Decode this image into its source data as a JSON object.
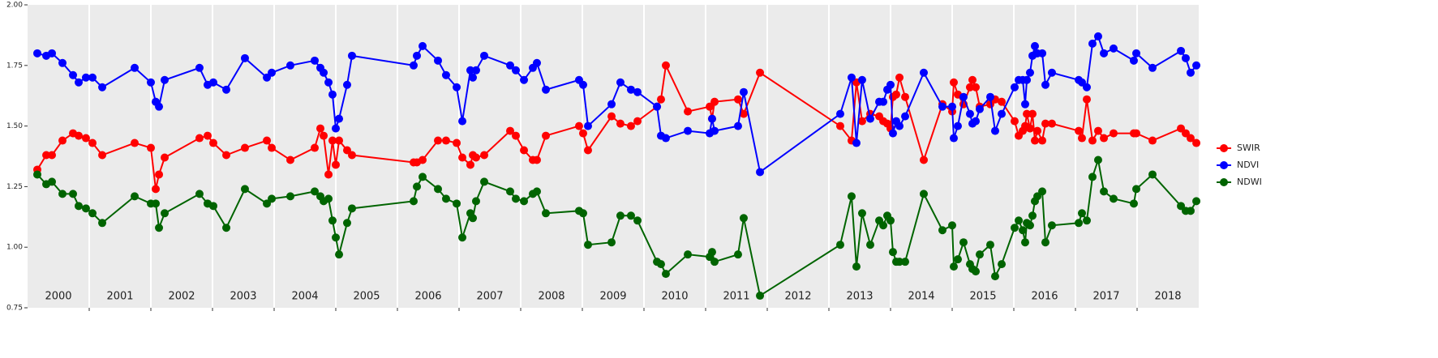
{
  "chart_data": {
    "type": "line",
    "x": [
      2000.158,
      2000.303,
      2000.395,
      2000.566,
      2000.737,
      2000.829,
      2000.947,
      2001.053,
      2001.211,
      2001.737,
      2002.0,
      2002.079,
      2002.132,
      2002.224,
      2002.789,
      2002.921,
      2003.013,
      2003.224,
      2003.526,
      2003.882,
      2003.961,
      2004.263,
      2004.658,
      2004.75,
      2004.803,
      2004.882,
      2004.947,
      2005.0,
      2005.053,
      2005.184,
      2005.263,
      2006.263,
      2006.316,
      2006.408,
      2006.658,
      2006.789,
      2006.961,
      2007.053,
      2007.184,
      2007.224,
      2007.276,
      2007.408,
      2007.829,
      2007.921,
      2008.053,
      2008.197,
      2008.263,
      2008.408,
      2008.947,
      2009.013,
      2009.092,
      2009.474,
      2009.618,
      2009.789,
      2009.895,
      2010.211,
      2010.276,
      2010.355,
      2010.711,
      2011.066,
      2011.105,
      2011.145,
      2011.526,
      2011.618,
      2011.882,
      2013.184,
      2013.368,
      2013.447,
      2013.539,
      2013.671,
      2013.816,
      2013.882,
      2013.947,
      2014.0,
      2014.039,
      2014.092,
      2014.145,
      2014.237,
      2014.539,
      2014.842,
      2015.0,
      2015.026,
      2015.092,
      2015.184,
      2015.289,
      2015.329,
      2015.382,
      2015.447,
      2015.618,
      2015.697,
      2015.803,
      2016.013,
      2016.079,
      2016.145,
      2016.184,
      2016.211,
      2016.263,
      2016.303,
      2016.342,
      2016.382,
      2016.461,
      2016.513,
      2016.618,
      2017.053,
      2017.105,
      2017.184,
      2017.276,
      2017.368,
      2017.461,
      2017.618,
      2017.947,
      2017.987,
      2018.25,
      2018.711,
      2018.789,
      2018.868,
      2018.961
    ],
    "series": [
      {
        "name": "SWIR",
        "color": "#ff0000",
        "values": [
          1.32,
          1.38,
          1.38,
          1.44,
          1.47,
          1.46,
          1.45,
          1.43,
          1.38,
          1.43,
          1.41,
          1.24,
          1.3,
          1.37,
          1.45,
          1.46,
          1.43,
          1.38,
          1.41,
          1.44,
          1.41,
          1.36,
          1.41,
          1.49,
          1.46,
          1.3,
          1.44,
          1.34,
          1.44,
          1.4,
          1.38,
          1.35,
          1.35,
          1.36,
          1.44,
          1.44,
          1.43,
          1.37,
          1.34,
          1.38,
          1.37,
          1.38,
          1.48,
          1.46,
          1.4,
          1.36,
          1.36,
          1.46,
          1.5,
          1.47,
          1.4,
          1.54,
          1.51,
          1.5,
          1.52,
          1.58,
          1.61,
          1.75,
          1.56,
          1.58,
          1.53,
          1.6,
          1.61,
          1.55,
          1.72,
          1.5,
          1.44,
          1.68,
          1.52,
          1.55,
          1.54,
          1.52,
          1.51,
          1.49,
          1.62,
          1.63,
          1.7,
          1.62,
          1.36,
          1.59,
          1.56,
          1.68,
          1.63,
          1.59,
          1.66,
          1.69,
          1.66,
          1.58,
          1.59,
          1.61,
          1.6,
          1.52,
          1.46,
          1.48,
          1.5,
          1.55,
          1.49,
          1.55,
          1.44,
          1.48,
          1.44,
          1.51,
          1.51,
          1.48,
          1.45,
          1.61,
          1.44,
          1.48,
          1.45,
          1.47,
          1.47,
          1.47,
          1.44,
          1.49,
          1.47,
          1.45,
          1.43
        ]
      },
      {
        "name": "NDVI",
        "color": "#0000ff",
        "values": [
          1.8,
          1.79,
          1.8,
          1.76,
          1.71,
          1.68,
          1.7,
          1.7,
          1.66,
          1.74,
          1.68,
          1.6,
          1.58,
          1.69,
          1.74,
          1.67,
          1.68,
          1.65,
          1.78,
          1.7,
          1.72,
          1.75,
          1.77,
          1.74,
          1.72,
          1.68,
          1.63,
          1.49,
          1.53,
          1.67,
          1.79,
          1.75,
          1.79,
          1.83,
          1.77,
          1.71,
          1.66,
          1.52,
          1.73,
          1.7,
          1.73,
          1.79,
          1.75,
          1.73,
          1.69,
          1.74,
          1.76,
          1.65,
          1.69,
          1.67,
          1.5,
          1.59,
          1.68,
          1.65,
          1.64,
          1.58,
          1.46,
          1.45,
          1.48,
          1.47,
          1.53,
          1.48,
          1.5,
          1.64,
          1.31,
          1.55,
          1.7,
          1.43,
          1.69,
          1.53,
          1.6,
          1.6,
          1.65,
          1.67,
          1.47,
          1.52,
          1.5,
          1.54,
          1.72,
          1.58,
          1.58,
          1.45,
          1.5,
          1.62,
          1.55,
          1.51,
          1.52,
          1.57,
          1.62,
          1.48,
          1.55,
          1.66,
          1.69,
          1.69,
          1.59,
          1.69,
          1.72,
          1.79,
          1.83,
          1.8,
          1.8,
          1.67,
          1.72,
          1.69,
          1.68,
          1.66,
          1.84,
          1.87,
          1.8,
          1.82,
          1.77,
          1.8,
          1.74,
          1.81,
          1.78,
          1.72,
          1.75
        ]
      },
      {
        "name": "NDWI",
        "color": "#006400",
        "values": [
          1.3,
          1.26,
          1.27,
          1.22,
          1.22,
          1.17,
          1.16,
          1.14,
          1.1,
          1.21,
          1.18,
          1.18,
          1.08,
          1.14,
          1.22,
          1.18,
          1.17,
          1.08,
          1.24,
          1.18,
          1.2,
          1.21,
          1.23,
          1.21,
          1.19,
          1.2,
          1.11,
          1.04,
          0.97,
          1.1,
          1.16,
          1.19,
          1.25,
          1.29,
          1.24,
          1.2,
          1.18,
          1.04,
          1.14,
          1.12,
          1.19,
          1.27,
          1.23,
          1.2,
          1.19,
          1.22,
          1.23,
          1.14,
          1.15,
          1.14,
          1.01,
          1.02,
          1.13,
          1.13,
          1.11,
          0.94,
          0.93,
          0.89,
          0.97,
          0.96,
          0.98,
          0.94,
          0.97,
          1.12,
          0.8,
          1.01,
          1.21,
          0.92,
          1.14,
          1.01,
          1.11,
          1.09,
          1.13,
          1.11,
          0.98,
          0.94,
          0.94,
          0.94,
          1.22,
          1.07,
          1.09,
          0.92,
          0.95,
          1.02,
          0.93,
          0.91,
          0.9,
          0.97,
          1.01,
          0.88,
          0.93,
          1.08,
          1.11,
          1.07,
          1.02,
          1.1,
          1.09,
          1.13,
          1.19,
          1.21,
          1.23,
          1.02,
          1.09,
          1.1,
          1.14,
          1.11,
          1.29,
          1.36,
          1.23,
          1.2,
          1.18,
          1.24,
          1.3,
          1.17,
          1.15,
          1.15,
          1.19
        ]
      }
    ],
    "xlim": [
      2000,
      2019
    ],
    "xticks": [
      {
        "value": 2000.5,
        "label": "2000"
      },
      {
        "value": 2001.5,
        "label": "2001"
      },
      {
        "value": 2002.5,
        "label": "2002"
      },
      {
        "value": 2003.5,
        "label": "2003"
      },
      {
        "value": 2004.5,
        "label": "2004"
      },
      {
        "value": 2005.5,
        "label": "2005"
      },
      {
        "value": 2006.5,
        "label": "2006"
      },
      {
        "value": 2007.5,
        "label": "2007"
      },
      {
        "value": 2008.5,
        "label": "2008"
      },
      {
        "value": 2009.5,
        "label": "2009"
      },
      {
        "value": 2010.5,
        "label": "2010"
      },
      {
        "value": 2011.5,
        "label": "2011"
      },
      {
        "value": 2012.5,
        "label": "2012"
      },
      {
        "value": 2013.5,
        "label": "2013"
      },
      {
        "value": 2014.5,
        "label": "2014"
      },
      {
        "value": 2015.5,
        "label": "2015"
      },
      {
        "value": 2016.5,
        "label": "2016"
      },
      {
        "value": 2017.5,
        "label": "2017"
      },
      {
        "value": 2018.5,
        "label": "2018"
      }
    ],
    "xgrid": [
      2001,
      2002,
      2003,
      2004,
      2005,
      2006,
      2007,
      2008,
      2009,
      2010,
      2011,
      2012,
      2013,
      2014,
      2015,
      2016,
      2017,
      2018
    ],
    "ylim": [
      0.75,
      2.0
    ],
    "yticks": [
      0.75,
      {
        "value": 1.0,
        "label": "1.00"
      },
      1.25,
      {
        "value": 1.5,
        "label": "1.50"
      },
      1.75,
      {
        "value": 2.0,
        "label": "2.00"
      }
    ],
    "legend": "right"
  }
}
